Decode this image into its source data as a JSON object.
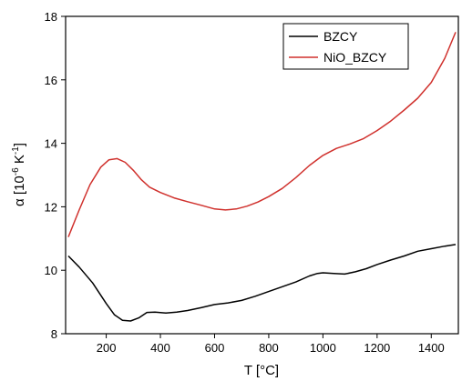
{
  "chart_data": {
    "type": "line",
    "xlabel": "T [°C]",
    "ylabel_parts": {
      "prefix": "α [10",
      "exp1": "-6",
      "mid": " K",
      "exp2": "-1",
      "suffix": "]"
    },
    "xlim": [
      50,
      1500
    ],
    "ylim": [
      8,
      18
    ],
    "x_ticks": [
      200,
      400,
      600,
      800,
      1000,
      1200,
      1400
    ],
    "y_ticks": [
      8,
      10,
      12,
      14,
      16,
      18
    ],
    "grid": false,
    "legend_position": "top-right",
    "series": [
      {
        "name": "BZCY",
        "color": "#000000",
        "points": [
          [
            60,
            10.45
          ],
          [
            100,
            10.1
          ],
          [
            150,
            9.6
          ],
          [
            200,
            8.95
          ],
          [
            230,
            8.6
          ],
          [
            260,
            8.42
          ],
          [
            290,
            8.4
          ],
          [
            320,
            8.5
          ],
          [
            350,
            8.67
          ],
          [
            380,
            8.68
          ],
          [
            420,
            8.65
          ],
          [
            460,
            8.68
          ],
          [
            500,
            8.73
          ],
          [
            550,
            8.82
          ],
          [
            600,
            8.92
          ],
          [
            650,
            8.97
          ],
          [
            700,
            9.05
          ],
          [
            750,
            9.18
          ],
          [
            800,
            9.33
          ],
          [
            850,
            9.48
          ],
          [
            900,
            9.63
          ],
          [
            950,
            9.82
          ],
          [
            980,
            9.9
          ],
          [
            1000,
            9.92
          ],
          [
            1040,
            9.9
          ],
          [
            1080,
            9.88
          ],
          [
            1120,
            9.95
          ],
          [
            1160,
            10.05
          ],
          [
            1200,
            10.18
          ],
          [
            1250,
            10.32
          ],
          [
            1300,
            10.45
          ],
          [
            1350,
            10.6
          ],
          [
            1400,
            10.68
          ],
          [
            1450,
            10.76
          ],
          [
            1490,
            10.81
          ]
        ]
      },
      {
        "name": "NiO_BZCY",
        "color": "#d0312d",
        "points": [
          [
            60,
            11.05
          ],
          [
            100,
            11.9
          ],
          [
            140,
            12.7
          ],
          [
            180,
            13.25
          ],
          [
            210,
            13.48
          ],
          [
            240,
            13.52
          ],
          [
            270,
            13.4
          ],
          [
            300,
            13.15
          ],
          [
            330,
            12.85
          ],
          [
            360,
            12.62
          ],
          [
            400,
            12.45
          ],
          [
            450,
            12.28
          ],
          [
            500,
            12.16
          ],
          [
            550,
            12.05
          ],
          [
            600,
            11.93
          ],
          [
            640,
            11.9
          ],
          [
            680,
            11.93
          ],
          [
            720,
            12.02
          ],
          [
            760,
            12.15
          ],
          [
            800,
            12.32
          ],
          [
            850,
            12.58
          ],
          [
            900,
            12.92
          ],
          [
            950,
            13.3
          ],
          [
            1000,
            13.62
          ],
          [
            1050,
            13.84
          ],
          [
            1100,
            13.98
          ],
          [
            1150,
            14.15
          ],
          [
            1200,
            14.4
          ],
          [
            1250,
            14.7
          ],
          [
            1300,
            15.05
          ],
          [
            1350,
            15.42
          ],
          [
            1400,
            15.92
          ],
          [
            1450,
            16.68
          ],
          [
            1490,
            17.5
          ]
        ]
      }
    ]
  }
}
